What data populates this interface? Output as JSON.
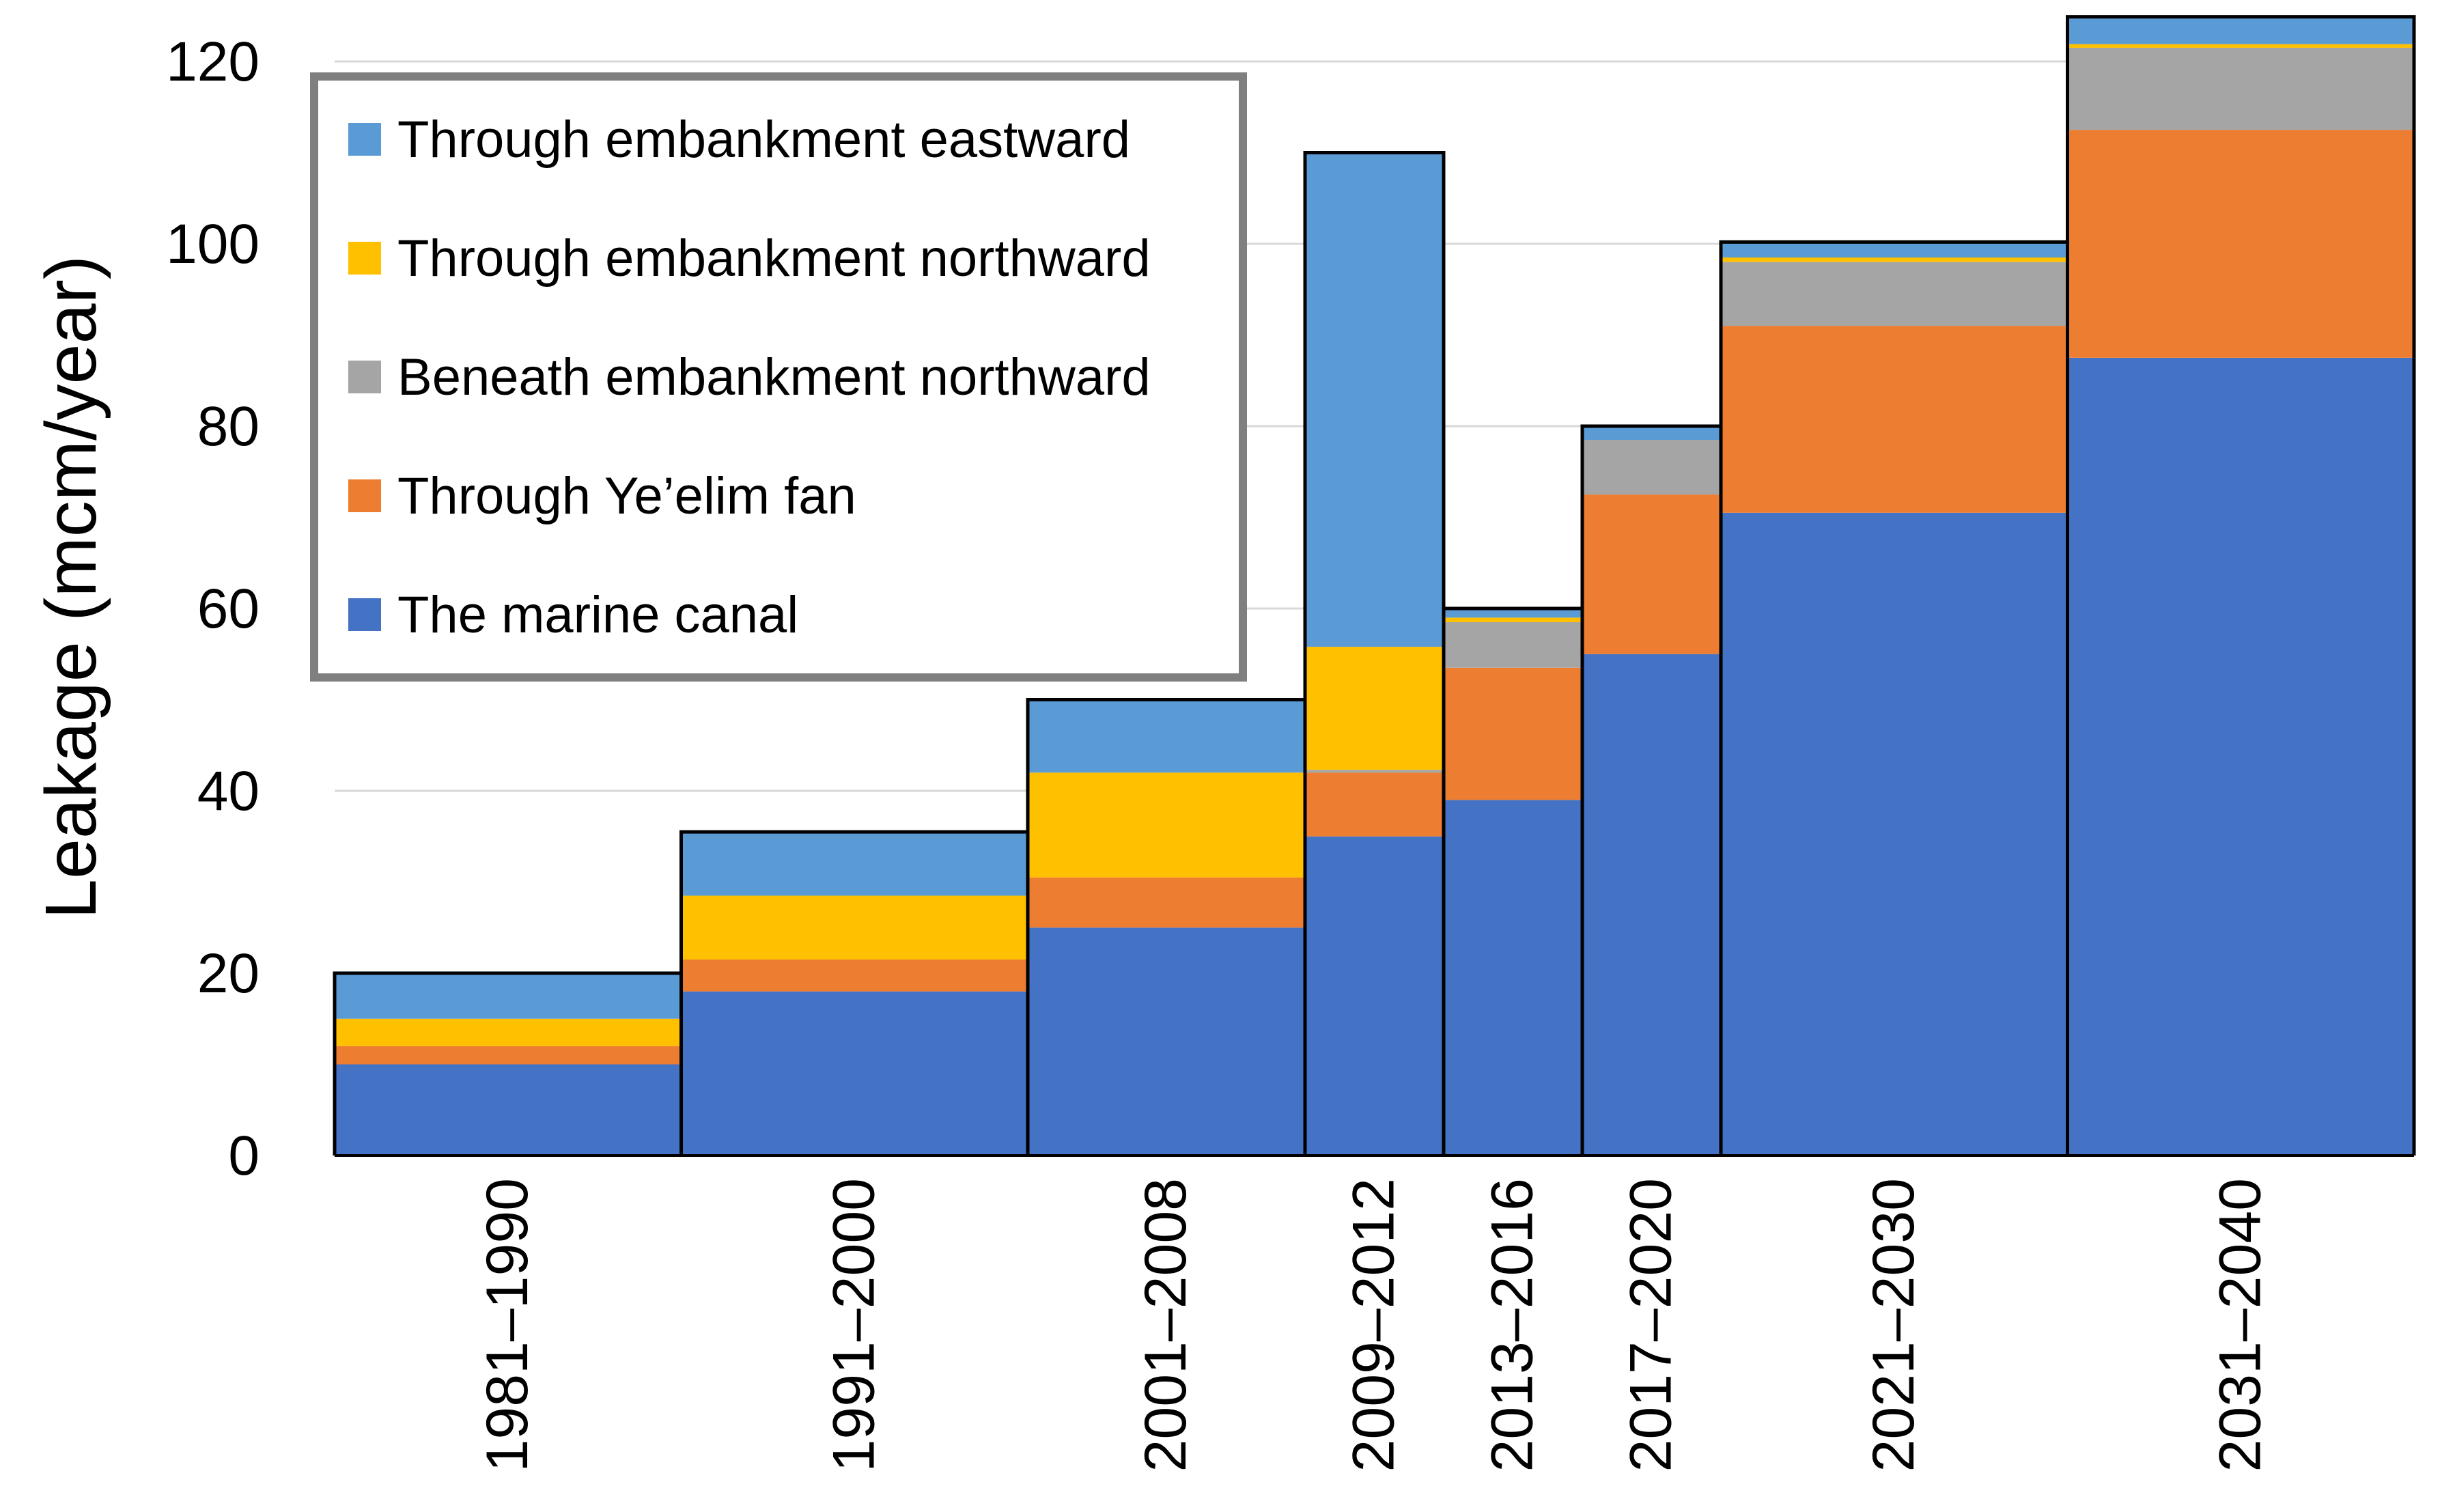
{
  "chart_data": {
    "type": "bar",
    "variant": "stacked-variable-width",
    "title": "",
    "xlabel": "",
    "ylabel": "Leakage (mcm/year)",
    "ylim": [
      0,
      125
    ],
    "yticks": [
      0,
      20,
      40,
      60,
      80,
      100,
      120
    ],
    "grid": true,
    "legend_position": "top-left",
    "categories": [
      "1981–1990",
      "1991–2000",
      "2001–2008",
      "2009–2012",
      "2013–2016",
      "2017–2020",
      "2021–2030",
      "2031–2040"
    ],
    "category_years": [
      10,
      10,
      8,
      4,
      4,
      4,
      10,
      10
    ],
    "series": [
      {
        "name": "The marine canal",
        "color": "#4472C4",
        "values": [
          10,
          18,
          25,
          35,
          39,
          55,
          70.5,
          87.5
        ]
      },
      {
        "name": "Through Ye’elim fan",
        "color": "#ED7D31",
        "values": [
          2,
          3.5,
          5.5,
          7,
          14.5,
          17.5,
          20.5,
          25
        ]
      },
      {
        "name": "Beneath embankment northward",
        "color": "#A5A5A5",
        "values": [
          0,
          0,
          0,
          0.3,
          5,
          6,
          7,
          9
        ]
      },
      {
        "name": "Through embankment northward",
        "color": "#FFC000",
        "values": [
          3,
          7,
          11.5,
          13.5,
          0.5,
          0,
          0.5,
          0.4
        ]
      },
      {
        "name": "Through embankment eastward",
        "color": "#5B9BD5",
        "values": [
          5,
          7,
          8,
          54.2,
          1,
          1.5,
          1.7,
          3
        ]
      }
    ],
    "legend_order": [
      "Through embankment eastward",
      "Through embankment northward",
      "Beneath embankment northward",
      "Through Ye’elim fan",
      "The marine canal"
    ]
  }
}
